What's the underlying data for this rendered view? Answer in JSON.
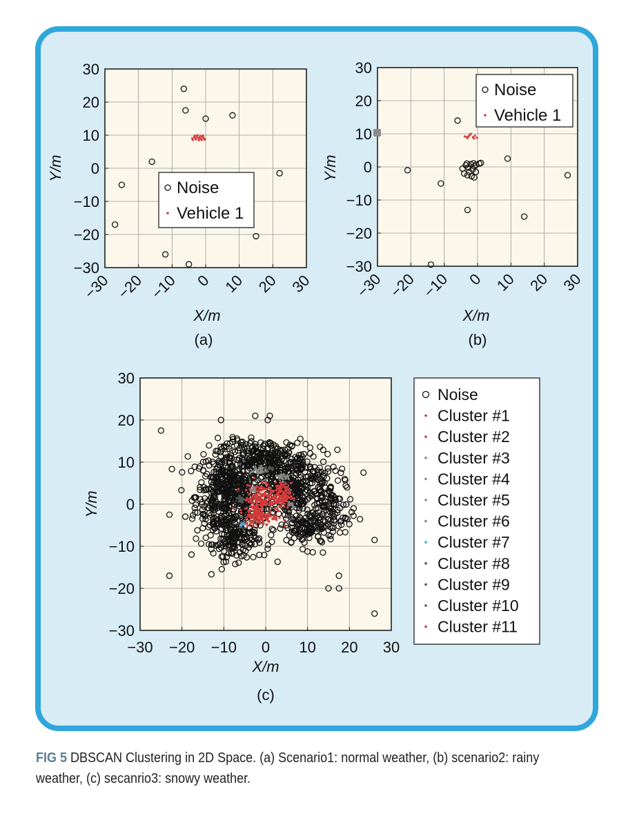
{
  "figure": {
    "label": "FIG 5",
    "caption": "DBSCAN Clustering in 2D Space. (a) Scenario1: normal weather, (b) scenario2: rainy weather, (c) secanrio3: snowy weather."
  },
  "colors": {
    "frame": "#2fa6dc",
    "frame_fill": "#d8ecf6",
    "plot_bg": "#fbf7ea",
    "noise": "#111111",
    "red": "#d43a3a",
    "gray": "#888888",
    "cyan": "#4aa8d8",
    "dark": "#555555"
  },
  "chart_data": [
    {
      "type": "scatter",
      "panel_label": "(a)",
      "xlabel": "X/m",
      "ylabel": "Y/m",
      "xlim": [
        -30,
        30
      ],
      "ylim": [
        -30,
        30
      ],
      "xticks": [
        "−30",
        "−20",
        "−10",
        "0",
        "10",
        "20",
        "30"
      ],
      "yticks": [
        "30",
        "20",
        "10",
        "0",
        "−10",
        "−20",
        "−30"
      ],
      "grid": true,
      "legend_position": "center",
      "series": [
        {
          "name": "Noise",
          "marker": "open-circle",
          "points": [
            [
              -6.5,
              24
            ],
            [
              -6,
              17.5
            ],
            [
              0,
              15
            ],
            [
              8,
              16
            ],
            [
              -16,
              2
            ],
            [
              -25,
              -5
            ],
            [
              22,
              -1.5
            ],
            [
              -27,
              -17
            ],
            [
              15,
              -20.5
            ],
            [
              -12,
              -26
            ],
            [
              -5,
              -29
            ]
          ]
        },
        {
          "name": "Vehicle 1",
          "marker": "dot",
          "color": "red",
          "points": [
            [
              -4,
              9
            ],
            [
              -3.4,
              9.4
            ],
            [
              -3,
              9
            ],
            [
              -2.6,
              9.6
            ],
            [
              -2.2,
              9.1
            ],
            [
              -1.8,
              9.3
            ],
            [
              -1.4,
              8.9
            ],
            [
              -1,
              9.5
            ],
            [
              -0.6,
              9.2
            ],
            [
              -0.2,
              8.8
            ],
            [
              -3.8,
              8.6
            ],
            [
              -2.9,
              8.7
            ],
            [
              -2,
              8.5
            ],
            [
              -1.2,
              8.6
            ],
            [
              -0.4,
              8.7
            ],
            [
              -3.2,
              9.9
            ],
            [
              -2.4,
              10
            ],
            [
              -1.6,
              9.8
            ],
            [
              -0.8,
              9.9
            ]
          ]
        }
      ]
    },
    {
      "type": "scatter",
      "panel_label": "(b)",
      "xlabel": "X/m",
      "ylabel": "Y/m",
      "xlim": [
        -30,
        30
      ],
      "ylim": [
        -30,
        30
      ],
      "xticks": [
        "−30",
        "−20",
        "−10",
        "0",
        "10",
        "20",
        "30"
      ],
      "yticks": [
        "30",
        "20",
        "10",
        "0",
        "−10",
        "−20",
        "−30"
      ],
      "grid": true,
      "legend_position": "top-right",
      "series": [
        {
          "name": "Noise",
          "marker": "open-circle",
          "points": [
            [
              -6,
              14
            ],
            [
              -21,
              -1
            ],
            [
              9,
              2.5
            ],
            [
              27,
              -2.5
            ],
            [
              -11,
              -5
            ],
            [
              -3,
              -13
            ],
            [
              14,
              -15
            ],
            [
              -14,
              -29.5
            ],
            [
              -4.5,
              -0.5
            ],
            [
              -3.5,
              0.5
            ],
            [
              -2.8,
              -0.2
            ],
            [
              -2,
              0.8
            ],
            [
              -1.5,
              -0.8
            ],
            [
              -1,
              0.2
            ],
            [
              -0.5,
              -1.5
            ],
            [
              -2.5,
              -1.5
            ],
            [
              -4,
              -2
            ],
            [
              -3,
              -2.5
            ],
            [
              -1.8,
              -2.8
            ],
            [
              -1,
              -3.2
            ],
            [
              -0.5,
              0.6
            ],
            [
              -3.2,
              1
            ],
            [
              -1.2,
              1.1
            ],
            [
              0.5,
              1
            ],
            [
              1,
              1.2
            ]
          ]
        },
        {
          "name": "Vehicle 1",
          "marker": "dot",
          "color": "red",
          "points": [
            [
              -3.8,
              9.2
            ],
            [
              -3.2,
              9
            ],
            [
              -2.6,
              9.3
            ],
            [
              -2,
              10
            ],
            [
              -1.4,
              9
            ],
            [
              -0.8,
              9.4
            ],
            [
              -0.2,
              8.8
            ],
            [
              -2.4,
              9.6
            ],
            [
              -1.1,
              8.6
            ],
            [
              -3,
              8.7
            ]
          ]
        }
      ]
    },
    {
      "type": "scatter",
      "panel_label": "(c)",
      "xlabel": "X/m",
      "ylabel": "Y/m",
      "xlim": [
        -30,
        30
      ],
      "ylim": [
        -30,
        30
      ],
      "xticks": [
        "−30",
        "−20",
        "−10",
        "0",
        "10",
        "20",
        "30"
      ],
      "yticks": [
        "30",
        "20",
        "10",
        "0",
        "−10",
        "−20",
        "−30"
      ],
      "grid": true,
      "legend_position": "outside-right",
      "legend": [
        {
          "name": "Noise",
          "marker": "open-circle",
          "color": "noise"
        },
        {
          "name": "Cluster #1",
          "marker": "dot",
          "color": "red"
        },
        {
          "name": "Cluster #2",
          "marker": "dot",
          "color": "red"
        },
        {
          "name": "Cluster #3",
          "marker": "dot",
          "color": "gray"
        },
        {
          "name": "Cluster #4",
          "marker": "dot",
          "color": "gray"
        },
        {
          "name": "Cluster #5",
          "marker": "dot",
          "color": "gray"
        },
        {
          "name": "Cluster #6",
          "marker": "dot",
          "color": "gray"
        },
        {
          "name": "Cluster #7",
          "marker": "dot",
          "color": "cyan"
        },
        {
          "name": "Cluster #8",
          "marker": "dot",
          "color": "dark"
        },
        {
          "name": "Cluster #9",
          "marker": "dot",
          "color": "dark"
        },
        {
          "name": "Cluster #10",
          "marker": "dot",
          "color": "dark"
        },
        {
          "name": "Cluster #11",
          "marker": "dot",
          "color": "red"
        }
      ],
      "noise_outliers": [
        [
          -25,
          17.5
        ],
        [
          -23,
          -2.5
        ],
        [
          -23,
          -17
        ],
        [
          26,
          -8.5
        ],
        [
          26,
          -26
        ],
        [
          -2.5,
          21
        ],
        [
          1,
          21
        ],
        [
          0.5,
          20
        ],
        [
          15,
          -20
        ],
        [
          17.5,
          -20
        ],
        [
          17.5,
          -17
        ],
        [
          21,
          -1
        ]
      ],
      "noise_cloud_regions": [
        {
          "cx": -9,
          "cy": 2,
          "rx": 7,
          "ry": 10,
          "n": 500
        },
        {
          "cx": 6,
          "cy": 4,
          "rx": 10,
          "ry": 8,
          "n": 400
        },
        {
          "cx": 0,
          "cy": 11,
          "rx": 9,
          "ry": 4,
          "n": 200
        },
        {
          "cx": -7,
          "cy": -9,
          "rx": 5,
          "ry": 4,
          "n": 110
        },
        {
          "cx": 10,
          "cy": -6,
          "rx": 6,
          "ry": 4,
          "n": 110
        },
        {
          "cx": 16,
          "cy": -2,
          "rx": 4,
          "ry": 7,
          "n": 60
        }
      ],
      "cluster_regions": [
        {
          "name": "Cluster #1",
          "cx": -2,
          "cy": 1,
          "rx": 3,
          "ry": 4,
          "n": 150
        },
        {
          "name": "Cluster #2",
          "cx": 3.5,
          "cy": 2,
          "rx": 2.5,
          "ry": 3,
          "n": 130
        },
        {
          "name": "Cluster #3",
          "cx": -1.5,
          "cy": 8,
          "rx": 2,
          "ry": 1,
          "n": 25
        },
        {
          "name": "Cluster #4",
          "cx": 4.5,
          "cy": 6.5,
          "rx": 1.5,
          "ry": 1,
          "n": 20
        },
        {
          "name": "Cluster #5",
          "cx": -3,
          "cy": 3.5,
          "rx": 1,
          "ry": 0.8,
          "n": 10
        },
        {
          "name": "Cluster #6",
          "cx": 6,
          "cy": 0,
          "rx": 1,
          "ry": 0.8,
          "n": 10
        },
        {
          "name": "Cluster #7",
          "cx": -5.5,
          "cy": -4.5,
          "rx": 0.8,
          "ry": 0.8,
          "n": 8
        },
        {
          "name": "Cluster #8",
          "cx": -6,
          "cy": 1,
          "rx": 1,
          "ry": 1,
          "n": 12
        },
        {
          "name": "Cluster #9",
          "cx": 1,
          "cy": 8.5,
          "rx": 1,
          "ry": 0.7,
          "n": 8
        },
        {
          "name": "Cluster #10",
          "cx": 5.5,
          "cy": -3,
          "rx": 1,
          "ry": 1,
          "n": 8
        },
        {
          "name": "Cluster #11",
          "cx": -1,
          "cy": -3,
          "rx": 4,
          "ry": 2,
          "n": 100
        }
      ]
    }
  ]
}
